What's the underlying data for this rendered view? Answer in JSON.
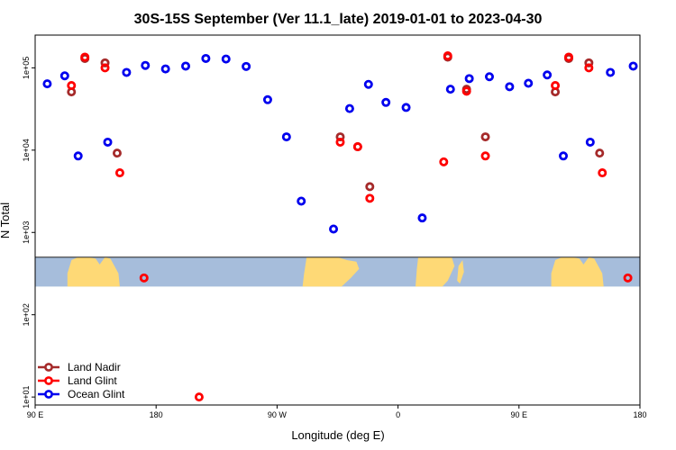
{
  "chart_data": {
    "type": "scatter",
    "title": "30S-15S September (Ver 11.1_late)   2019-01-01 to 2023-04-30",
    "xlabel": "Longitude (deg E)",
    "ylabel": "N Total",
    "x_scale": "linear",
    "y_scale": "log",
    "xlim": [
      90,
      540
    ],
    "ylim": [
      8,
      250000
    ],
    "x_ticks": [
      {
        "value": 90,
        "label": "90 E"
      },
      {
        "value": 180,
        "label": "180"
      },
      {
        "value": 270,
        "label": "90 W"
      },
      {
        "value": 360,
        "label": "0"
      },
      {
        "value": 450,
        "label": "90 E"
      },
      {
        "value": 540,
        "label": "180"
      }
    ],
    "y_ticks": [
      {
        "value": 10,
        "label": "1e+01"
      },
      {
        "value": 100,
        "label": "1e+02"
      },
      {
        "value": 1000,
        "label": "1e+03"
      },
      {
        "value": 10000,
        "label": "1e+04"
      },
      {
        "value": 100000,
        "label": "1e+05"
      }
    ],
    "map_band": {
      "y_top": 500,
      "y_bottom": 220,
      "ocean_color": "#a6bddb",
      "land_color": "#fed976"
    },
    "legend_position": "bottom-left",
    "grid": false,
    "series": [
      {
        "name": "Land Nadir",
        "color": "#a52a2a",
        "points": [
          [
            117,
            51000
          ],
          [
            127,
            130000
          ],
          [
            142,
            115000
          ],
          [
            151,
            9200
          ],
          [
            317,
            14500
          ],
          [
            330,
            11000
          ],
          [
            339,
            3600
          ],
          [
            397,
            135000
          ],
          [
            411,
            55000
          ],
          [
            425,
            14500
          ],
          [
            477,
            51000
          ],
          [
            487,
            130000
          ],
          [
            502,
            115000
          ],
          [
            510,
            9200
          ]
        ]
      },
      {
        "name": "Land Glint",
        "color": "#ff0000",
        "points": [
          [
            117,
            61000
          ],
          [
            127,
            135000
          ],
          [
            142,
            100000
          ],
          [
            153,
            5300
          ],
          [
            171,
            280
          ],
          [
            212,
            10
          ],
          [
            317,
            12500
          ],
          [
            330,
            11000
          ],
          [
            339,
            2600
          ],
          [
            394,
            7200
          ],
          [
            397,
            140000
          ],
          [
            411,
            52000
          ],
          [
            425,
            8500
          ],
          [
            477,
            61000
          ],
          [
            487,
            135000
          ],
          [
            502,
            100000
          ],
          [
            512,
            5300
          ],
          [
            531,
            280
          ]
        ]
      },
      {
        "name": "Ocean Glint",
        "color": "#0000ee",
        "points": [
          [
            99,
            64000
          ],
          [
            112,
            80000
          ],
          [
            122,
            8500
          ],
          [
            144,
            12500
          ],
          [
            158,
            88000
          ],
          [
            172,
            107000
          ],
          [
            187,
            97000
          ],
          [
            202,
            105000
          ],
          [
            217,
            130000
          ],
          [
            232,
            128000
          ],
          [
            247,
            104000
          ],
          [
            263,
            41000
          ],
          [
            277,
            14500
          ],
          [
            288,
            2400
          ],
          [
            312,
            1100
          ],
          [
            324,
            32000
          ],
          [
            338,
            63000
          ],
          [
            351,
            38000
          ],
          [
            366,
            33000
          ],
          [
            378,
            1500
          ],
          [
            399,
            55000
          ],
          [
            413,
            74000
          ],
          [
            428,
            78000
          ],
          [
            443,
            59000
          ],
          [
            457,
            65000
          ],
          [
            471,
            82000
          ],
          [
            483,
            8500
          ],
          [
            503,
            12500
          ],
          [
            518,
            88000
          ],
          [
            535,
            105000
          ]
        ]
      }
    ]
  }
}
